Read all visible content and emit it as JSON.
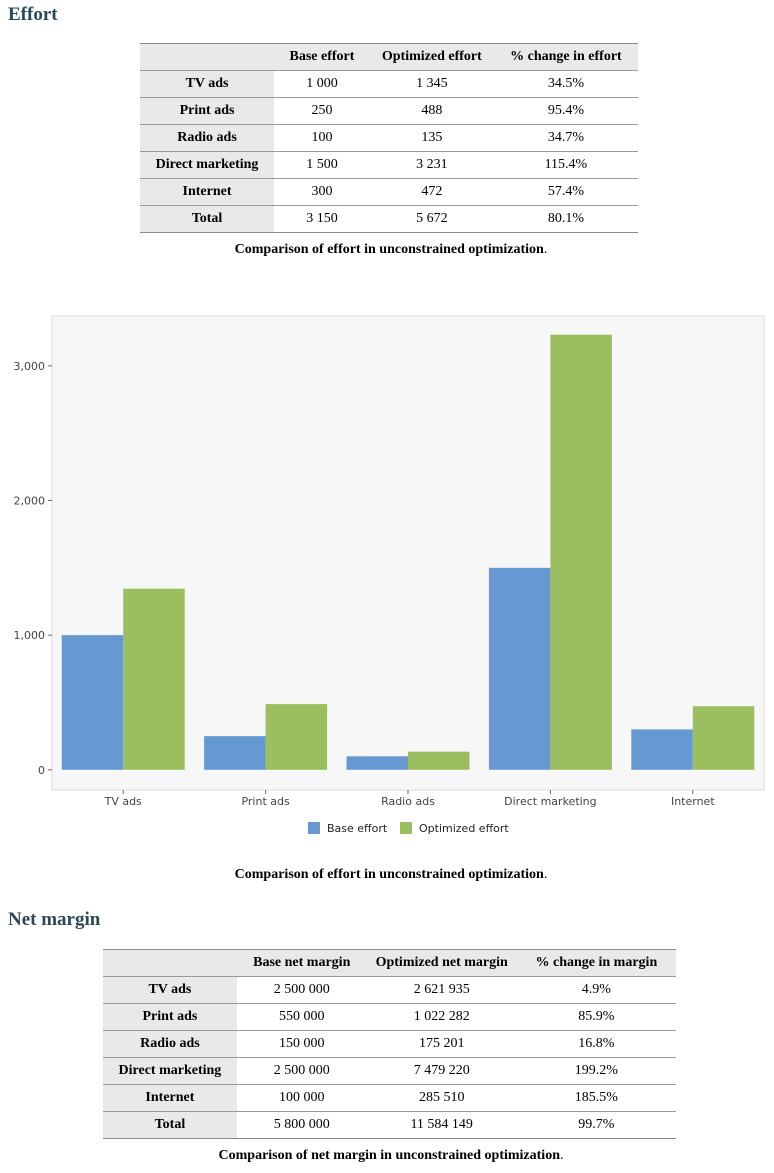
{
  "effort": {
    "heading": "Effort",
    "table": {
      "headers": [
        "",
        "Base effort",
        "Optimized effort",
        "% change in effort"
      ],
      "rows": [
        [
          "TV ads",
          "1 000",
          "1 345",
          "34.5%"
        ],
        [
          "Print ads",
          "250",
          "488",
          "95.4%"
        ],
        [
          "Radio ads",
          "100",
          "135",
          "34.7%"
        ],
        [
          "Direct marketing",
          "1 500",
          "3 231",
          "115.4%"
        ],
        [
          "Internet",
          "300",
          "472",
          "57.4%"
        ],
        [
          "Total",
          "3 150",
          "5 672",
          "80.1%"
        ]
      ]
    },
    "table_caption": "Comparison of effort in unconstrained optimization",
    "chart_caption": "Comparison of effort in unconstrained optimization"
  },
  "chart_data": {
    "type": "bar",
    "categories": [
      "TV ads",
      "Print ads",
      "Radio ads",
      "Direct marketing",
      "Internet"
    ],
    "series": [
      {
        "name": "Base effort",
        "values": [
          1000,
          250,
          100,
          1500,
          300
        ],
        "color": "#6699d2"
      },
      {
        "name": "Optimized effort",
        "values": [
          1345,
          488,
          135,
          3231,
          472
        ],
        "color": "#9bbf5f"
      }
    ],
    "yticks": [
      0,
      1000,
      2000,
      3000
    ],
    "ytick_labels": [
      "0",
      "1,000",
      "2,000",
      "3,000"
    ],
    "ylim": [
      -150,
      3370
    ],
    "grid": false,
    "legend_position": "bottom",
    "background": "#f7f7f7"
  },
  "margin": {
    "heading": "Net margin",
    "table": {
      "headers": [
        "",
        "Base net margin",
        "Optimized net margin",
        "% change in margin"
      ],
      "rows": [
        [
          "TV ads",
          "2 500 000",
          "2 621 935",
          "4.9%"
        ],
        [
          "Print ads",
          "550 000",
          "1 022 282",
          "85.9%"
        ],
        [
          "Radio ads",
          "150 000",
          "175 201",
          "16.8%"
        ],
        [
          "Direct marketing",
          "2 500 000",
          "7 479 220",
          "199.2%"
        ],
        [
          "Internet",
          "100 000",
          "285 510",
          "185.5%"
        ],
        [
          "Total",
          "5 800 000",
          "11 584 149",
          "99.7%"
        ]
      ]
    },
    "table_caption": "Comparison of net margin in unconstrained optimization"
  }
}
